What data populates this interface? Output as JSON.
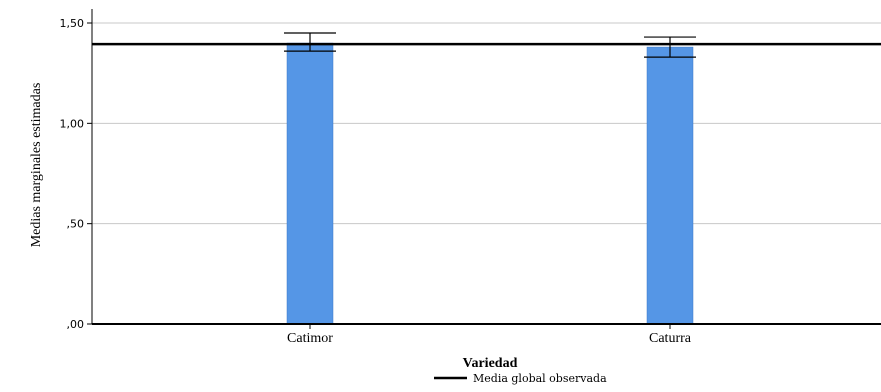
{
  "chart_data": {
    "type": "bar",
    "categories": [
      "Catimor",
      "Caturra"
    ],
    "values": [
      1.4,
      1.38
    ],
    "error_bars": [
      {
        "low": 1.36,
        "high": 1.45
      },
      {
        "low": 1.33,
        "high": 1.43
      }
    ],
    "reference_line": {
      "value": 1.395,
      "label": "Media global observada",
      "color": "#000000"
    },
    "xlabel": "Variedad",
    "ylabel": "Medias marginales estimadas",
    "ylim": [
      0,
      1.5
    ],
    "yticks": [
      {
        "value": 0,
        "label": ",00"
      },
      {
        "value": 0.5,
        "label": ",50"
      },
      {
        "value": 1.0,
        "label": "1,00"
      },
      {
        "value": 1.5,
        "label": "1,50"
      }
    ],
    "grid": true,
    "legend_position": "bottom-center",
    "colors": {
      "bar": "#5596e6",
      "bar_edge": "#3a78c8",
      "grid": "#c8c8c8",
      "axis": "#000000"
    }
  }
}
